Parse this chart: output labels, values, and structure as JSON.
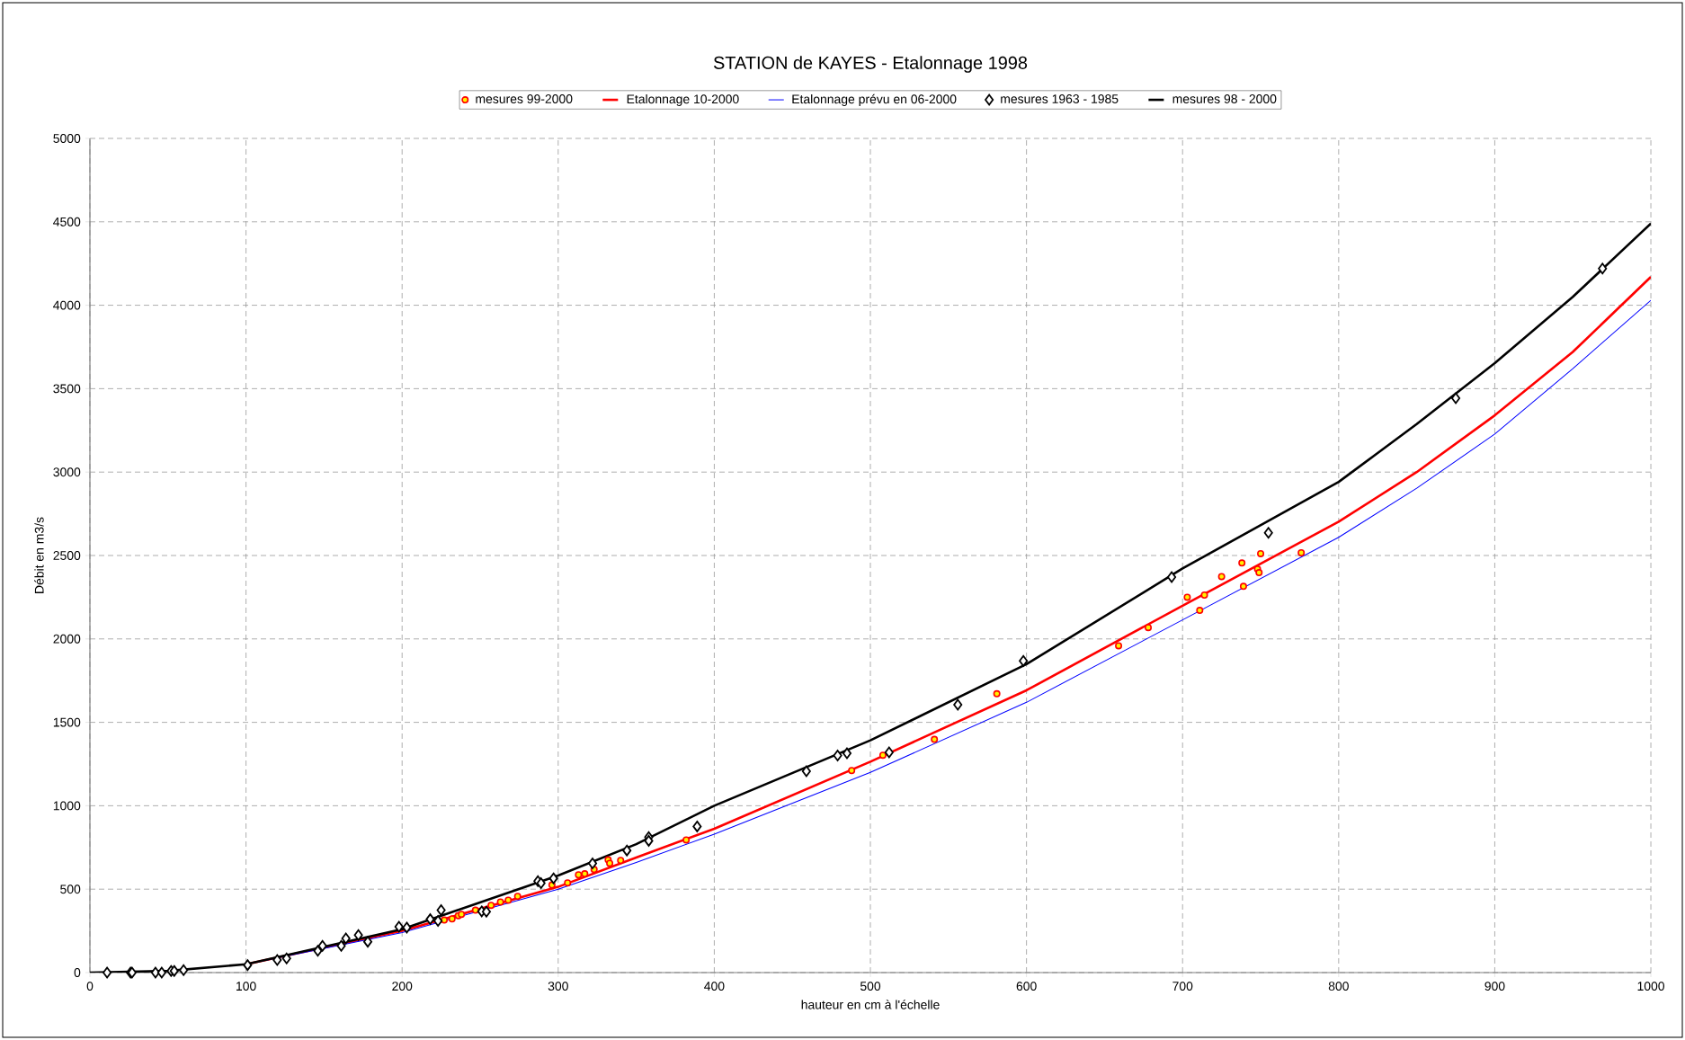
{
  "chart_data": {
    "type": "line",
    "title": "STATION de KAYES - Etalonnage 1998",
    "xlabel": "hauteur en cm à l'échelle",
    "ylabel": "Débit en m3/s",
    "xlim": [
      0,
      1000
    ],
    "ylim": [
      0,
      5000
    ],
    "xticks": [
      0,
      100,
      200,
      300,
      400,
      500,
      600,
      700,
      800,
      900,
      1000
    ],
    "yticks": [
      0,
      500,
      1000,
      1500,
      2000,
      2500,
      3000,
      3500,
      4000,
      4500,
      5000
    ],
    "grid": true,
    "legend": "top",
    "line_style": "solid",
    "series": [
      {
        "name": "mesures 99-2000",
        "type": "scatter",
        "marker": "circle",
        "color": "#ff0000",
        "x": [
          227,
          232,
          236,
          238,
          247,
          257,
          263,
          268,
          274,
          296,
          306,
          313,
          317,
          323,
          332,
          333,
          340,
          382,
          488,
          508,
          541,
          581,
          659,
          678,
          703,
          711,
          714,
          725,
          738,
          739,
          748,
          749,
          750,
          776
        ],
        "values": [
          315,
          322,
          341,
          349,
          374,
          403,
          423,
          434,
          457,
          525,
          538,
          586,
          592,
          618,
          676,
          655,
          672,
          795,
          1211,
          1303,
          1398,
          1671,
          1959,
          2068,
          2250,
          2171,
          2263,
          2374,
          2455,
          2315,
          2419,
          2397,
          2511,
          2516
        ]
      },
      {
        "name": "Etalonnage 10-2000",
        "marker": "none",
        "color": "#ff0000",
        "x": [
          100,
          200,
          300,
          350,
          400,
          500,
          600,
          700,
          800,
          850,
          900,
          950,
          1000
        ],
        "values": [
          50,
          250,
          514,
          690,
          862,
          1264,
          1692,
          2199,
          2703,
          3000,
          3340,
          3720,
          4170
        ]
      },
      {
        "name": "Etalonnage prévu en 06-2000",
        "marker": "none",
        "color": "#0000ff",
        "x": [
          100,
          200,
          300,
          350,
          400,
          500,
          600,
          700,
          800,
          850,
          900,
          950,
          1000
        ],
        "values": [
          50,
          240,
          500,
          660,
          830,
          1200,
          1620,
          2114,
          2609,
          2903,
          3228,
          3620,
          4030
        ]
      },
      {
        "name": "mesures 1963 - 1985",
        "type": "scatter",
        "marker": "diamond",
        "color": "#000000",
        "x": [
          11,
          26,
          27,
          42,
          46,
          52,
          54,
          60,
          101,
          120,
          126,
          146,
          149,
          161,
          164,
          172,
          178,
          198,
          203,
          218,
          223,
          225,
          251,
          254,
          287,
          289,
          297,
          322,
          344,
          358,
          358,
          389,
          459,
          479,
          485,
          512,
          556,
          598,
          693,
          755,
          875,
          969
        ],
        "values": [
          0,
          0,
          0,
          0,
          0,
          10,
          10,
          15,
          45,
          75,
          85,
          130,
          160,
          160,
          205,
          225,
          185,
          275,
          270,
          320,
          310,
          374,
          367,
          365,
          548,
          536,
          565,
          655,
          732,
          812,
          790,
          876,
          1207,
          1301,
          1314,
          1320,
          1606,
          1868,
          2371,
          2636,
          3443,
          4220
        ]
      },
      {
        "name": "mesures 98 - 2000",
        "marker": "none",
        "color": "#000000",
        "x": [
          0,
          50,
          100,
          200,
          300,
          350,
          400,
          500,
          600,
          700,
          800,
          850,
          900,
          950,
          1000
        ],
        "values": [
          0,
          10,
          50,
          260,
          582,
          770,
          1000,
          1392,
          1849,
          2422,
          2941,
          3288,
          3653,
          4050,
          4490
        ]
      }
    ]
  }
}
